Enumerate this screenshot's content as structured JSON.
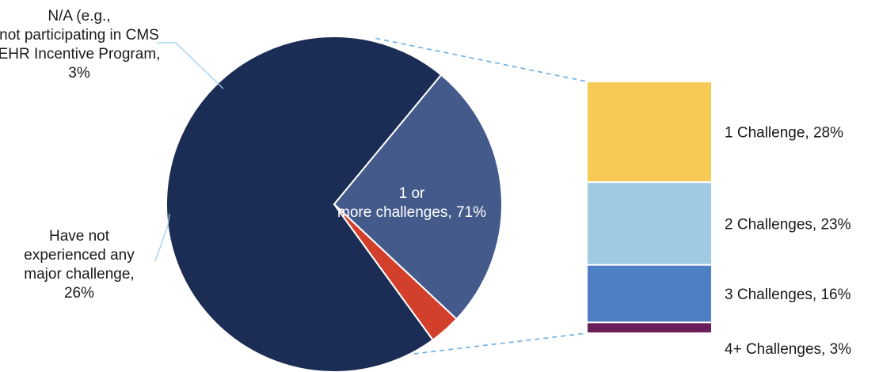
{
  "chart_data": {
    "type": "pie",
    "title": "",
    "pie": {
      "slices": [
        {
          "label": "1 or more challenges, 71%",
          "value": 71,
          "color": "#1b2d55"
        },
        {
          "label": "Have not experienced any major challenge, 26%",
          "value": 26,
          "color": "#435a8b"
        },
        {
          "label": "N/A (e.g., not participating in CMS EHR Incentive Program, 3%",
          "value": 3,
          "color": "#d23f2b"
        }
      ]
    },
    "breakdown": {
      "type": "stacked-bar",
      "of": "1 or more challenges",
      "segments": [
        {
          "label": "1 Challenge, 28%",
          "value": 28,
          "color": "#f6ca55"
        },
        {
          "label": "2 Challenges, 23%",
          "value": 23,
          "color": "#9ecae2"
        },
        {
          "label": "3 Challenges, 16%",
          "value": 16,
          "color": "#4e7ec4"
        },
        {
          "label": "4+ Challenges, 3%",
          "value": 3,
          "color": "#6a1f5b"
        }
      ]
    }
  }
}
